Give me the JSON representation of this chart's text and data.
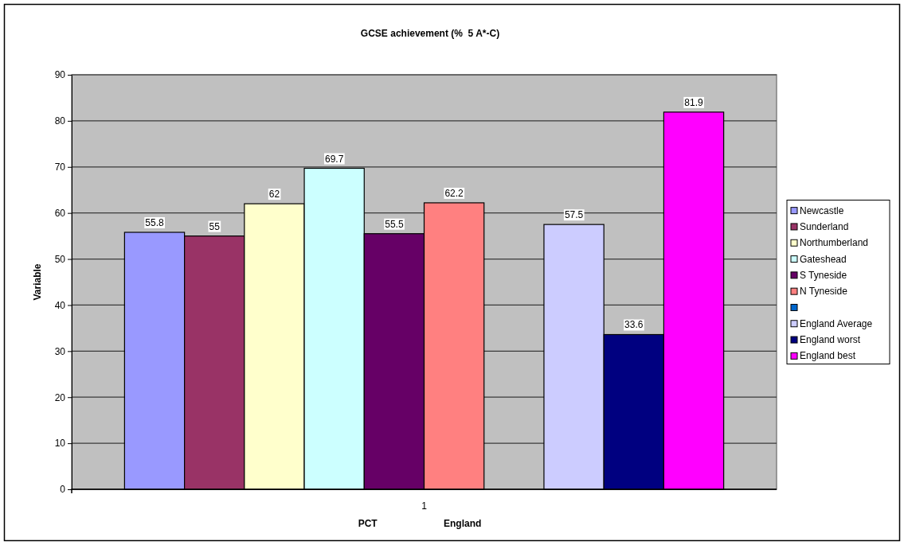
{
  "chart_data": {
    "type": "bar",
    "title": "GCSE achievement (%  5 A*-C)",
    "xlabel": "PCT                         England",
    "ylabel": "Variable",
    "categories": [
      "1"
    ],
    "series": [
      {
        "name": "Newcastle",
        "color": "#9999ff",
        "values": [
          55.8
        ]
      },
      {
        "name": "Sunderland",
        "color": "#993366",
        "values": [
          55
        ]
      },
      {
        "name": "Northumberland",
        "color": "#ffffcc",
        "values": [
          62
        ]
      },
      {
        "name": "Gateshead",
        "color": "#ccffff",
        "values": [
          69.7
        ]
      },
      {
        "name": "S Tyneside",
        "color": "#660066",
        "values": [
          55.5
        ]
      },
      {
        "name": "N Tyneside",
        "color": "#ff8080",
        "values": [
          62.2
        ]
      },
      {
        "color": "#0066cc",
        "values": [
          null
        ]
      },
      {
        "name": "England Average",
        "color": "#ccccff",
        "values": [
          57.5
        ]
      },
      {
        "name": "England worst",
        "color": "#000080",
        "values": [
          33.6
        ]
      },
      {
        "name": "England best",
        "color": "#ff00ff",
        "values": [
          81.9
        ]
      }
    ],
    "ylim": [
      0,
      90
    ],
    "yticks": [
      0,
      10,
      20,
      30,
      40,
      50,
      60,
      70,
      80,
      90
    ],
    "grid": "y",
    "legend": "right",
    "data_labels": true
  }
}
